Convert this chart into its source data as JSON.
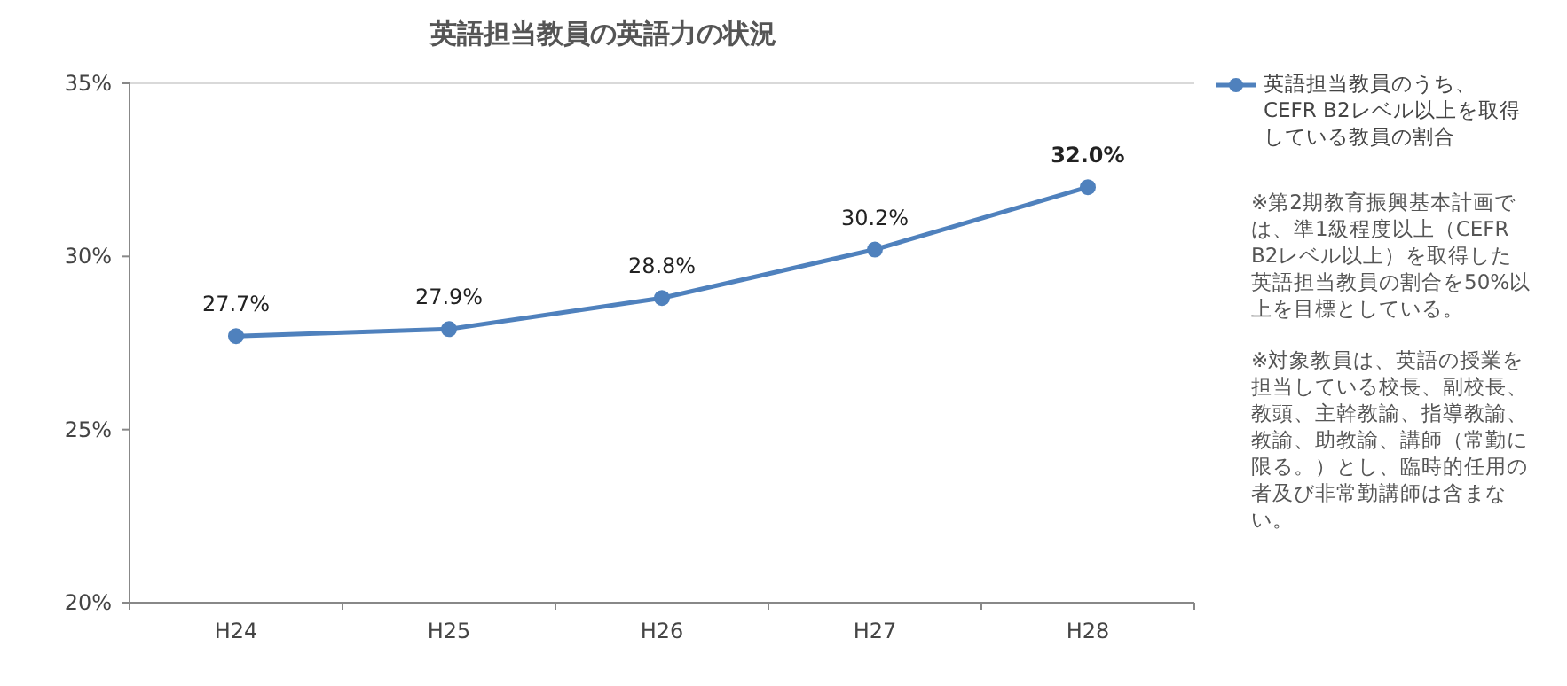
{
  "chart_data": {
    "type": "line",
    "title": "英語担当教員の英語力の状況",
    "categories": [
      "H24",
      "H25",
      "H26",
      "H27",
      "H28"
    ],
    "series": [
      {
        "name": "英語担当教員のうち、CEFR B2レベル以上を取得している教員の割合",
        "color": "#4f81bd",
        "values": [
          27.7,
          27.9,
          28.8,
          30.2,
          32.0
        ],
        "value_labels": [
          "27.7%",
          "27.9%",
          "28.8%",
          "30.2%",
          "32.0%"
        ]
      }
    ],
    "ylim": [
      20,
      35
    ],
    "yticks": [
      {
        "value": 20,
        "label": "20%"
      },
      {
        "value": 25,
        "label": "25%"
      },
      {
        "value": 30,
        "label": "30%"
      },
      {
        "value": 35,
        "label": "35%"
      }
    ],
    "marker": "circle",
    "legend": "right",
    "grid": false,
    "annotations": [
      "※第2期教育振興基本計画では、準1級程度以上（CEFR B2レベル以上）を取得した英語担当教員の割合を50%以上を目標としている。",
      "※対象教員は、英語の授業を担当している校長、副校長、教頭、主幹教諭、指導教諭、教諭、助教諭、講師（常勤に限る。）とし、臨時的任用の者及び非常勤講師は含まない。"
    ]
  }
}
